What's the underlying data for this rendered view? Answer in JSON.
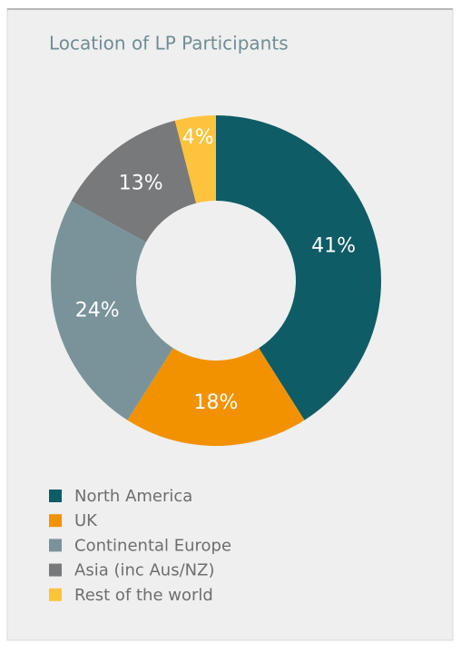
{
  "chart_data": {
    "type": "donut",
    "title": "Location of LP Participants",
    "categories": [
      "North America",
      "UK",
      "Continental Europe",
      "Asia (inc Aus/NZ)",
      "Rest of the world"
    ],
    "values": [
      41,
      18,
      24,
      13,
      4
    ],
    "value_labels": [
      "41%",
      "18%",
      "24%",
      "13%",
      "4%"
    ],
    "colors": [
      "#0e5c66",
      "#f39200",
      "#7a939a",
      "#77797b",
      "#fdc33c"
    ],
    "legend": "bottom-left"
  }
}
